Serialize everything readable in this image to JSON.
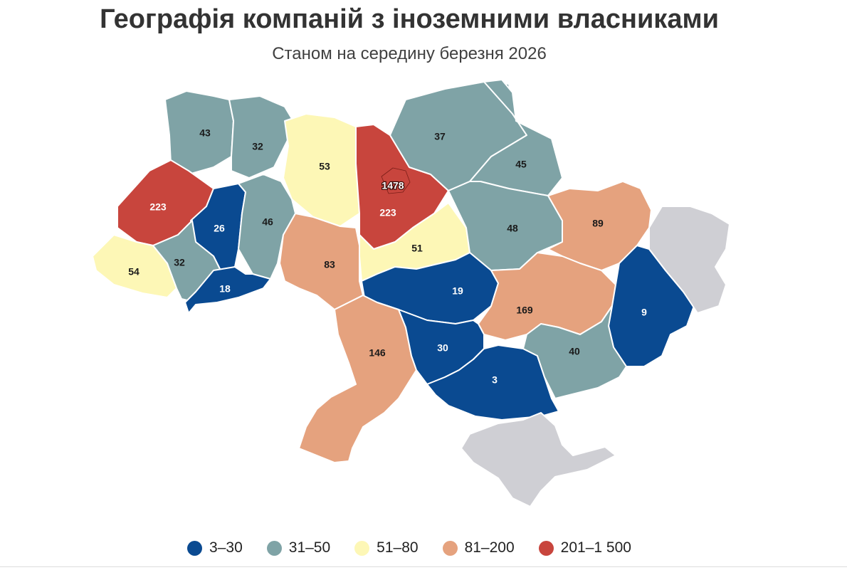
{
  "title": "Географія компаній з іноземними власниками",
  "subtitle": "Станом на середину березня 2026",
  "legend": [
    {
      "label": "3–30",
      "color": "#0a4a91",
      "min": 3,
      "max": 30
    },
    {
      "label": "31–50",
      "color": "#7fa3a6",
      "min": 31,
      "max": 50
    },
    {
      "label": "51–80",
      "color": "#fdf7b6",
      "min": 51,
      "max": 80
    },
    {
      "label": "81–200",
      "color": "#e5a27e",
      "min": 81,
      "max": 200
    },
    {
      "label": "201–1 500",
      "color": "#c8453d",
      "min": 201,
      "max": 1500
    }
  ],
  "no_data_color": "#cfcfd4",
  "border_color": "#ffffff",
  "chart_data": {
    "type": "choropleth",
    "regions": [
      {
        "name": "Волинська",
        "value": 43
      },
      {
        "name": "Рівненська",
        "value": 32
      },
      {
        "name": "Житомирська",
        "value": 53
      },
      {
        "name": "Київська",
        "value": 223
      },
      {
        "name": "м. Київ",
        "value": 1478
      },
      {
        "name": "Чернігівська",
        "value": 37
      },
      {
        "name": "Сумська",
        "value": 45
      },
      {
        "name": "Львівська",
        "value": 223
      },
      {
        "name": "Тернопільська",
        "value": 26
      },
      {
        "name": "Хмельницька",
        "value": 46
      },
      {
        "name": "Закарпатська",
        "value": 54
      },
      {
        "name": "Івано-Франківська",
        "value": 32
      },
      {
        "name": "Чернівецька",
        "value": 18
      },
      {
        "name": "Вінницька",
        "value": 83
      },
      {
        "name": "Черкаська",
        "value": 51
      },
      {
        "name": "Полтавська",
        "value": 48
      },
      {
        "name": "Харківська",
        "value": 89
      },
      {
        "name": "Кіровоградська",
        "value": 19
      },
      {
        "name": "Дніпропетровська",
        "value": 169
      },
      {
        "name": "Донецька",
        "value": 9
      },
      {
        "name": "Одеська",
        "value": 146
      },
      {
        "name": "Миколаївська",
        "value": 30
      },
      {
        "name": "Херсонська",
        "value": 3
      },
      {
        "name": "Запорізька",
        "value": 40
      },
      {
        "name": "Луганська",
        "value": null
      },
      {
        "name": "АР Крим",
        "value": null
      }
    ]
  }
}
